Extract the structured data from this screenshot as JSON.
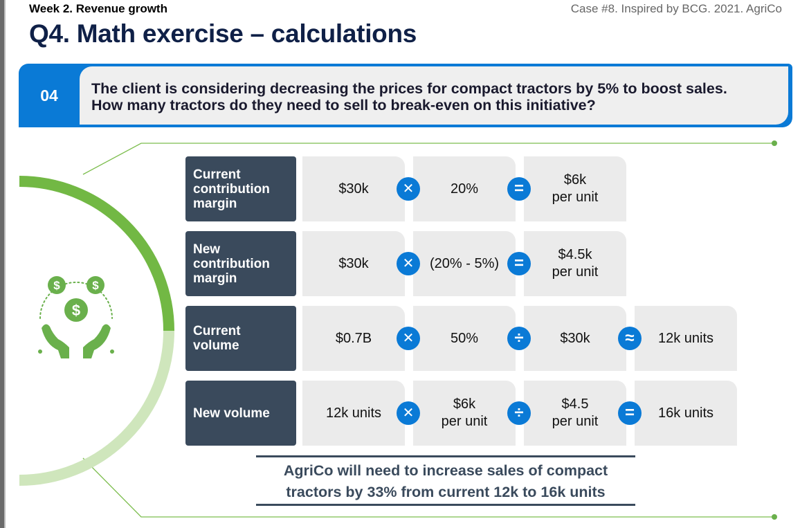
{
  "header": {
    "week": "Week 2. Revenue growth",
    "case": "Case #8. Inspired by BCG. 2021. AgriCo",
    "title": "Q4. Math exercise – calculations"
  },
  "question": {
    "number": "04",
    "text_line1": "The client is considering decreasing the prices for compact tractors by 5% to boost sales.",
    "text_line2": "How many tractors do they need to sell to break-even on this initiative?"
  },
  "rows": [
    {
      "label_lines": [
        "Current",
        "contribution",
        "margin"
      ],
      "cells": [
        [
          "$30k"
        ],
        [
          "20%"
        ],
        [
          "$6k",
          "per unit"
        ]
      ],
      "operators": [
        "multiply",
        "equals"
      ]
    },
    {
      "label_lines": [
        "New",
        "contribution",
        "margin"
      ],
      "cells": [
        [
          "$30k"
        ],
        [
          "(20% - 5%)"
        ],
        [
          "$4.5k",
          "per unit"
        ]
      ],
      "operators": [
        "multiply",
        "equals"
      ]
    },
    {
      "label_lines": [
        "Current",
        "volume"
      ],
      "cells": [
        [
          "$0.7B"
        ],
        [
          "50%"
        ],
        [
          "$30k"
        ],
        [
          "12k units"
        ]
      ],
      "operators": [
        "multiply",
        "divide",
        "approx"
      ]
    },
    {
      "label_lines": [
        "New volume"
      ],
      "cells": [
        [
          "12k units"
        ],
        [
          "$6k",
          "per unit"
        ],
        [
          "$4.5",
          "per unit"
        ],
        [
          "16k units"
        ]
      ],
      "operators": [
        "multiply",
        "divide",
        "equals"
      ]
    }
  ],
  "conclusion": {
    "line1": "AgriCo will need to increase sales of compact",
    "line2": "tractors by 33% from current 12k to 16k units"
  },
  "icons": {
    "illustration": "money-hands-icon",
    "operators": [
      "multiply-icon",
      "equals-icon",
      "divide-icon",
      "approx-icon"
    ]
  },
  "colors": {
    "accent_blue": "#0a7ad6",
    "label_dark": "#3a4a5c",
    "green": "#6ab04c",
    "title_navy": "#0f2047",
    "cell_grey": "#ebebeb"
  }
}
